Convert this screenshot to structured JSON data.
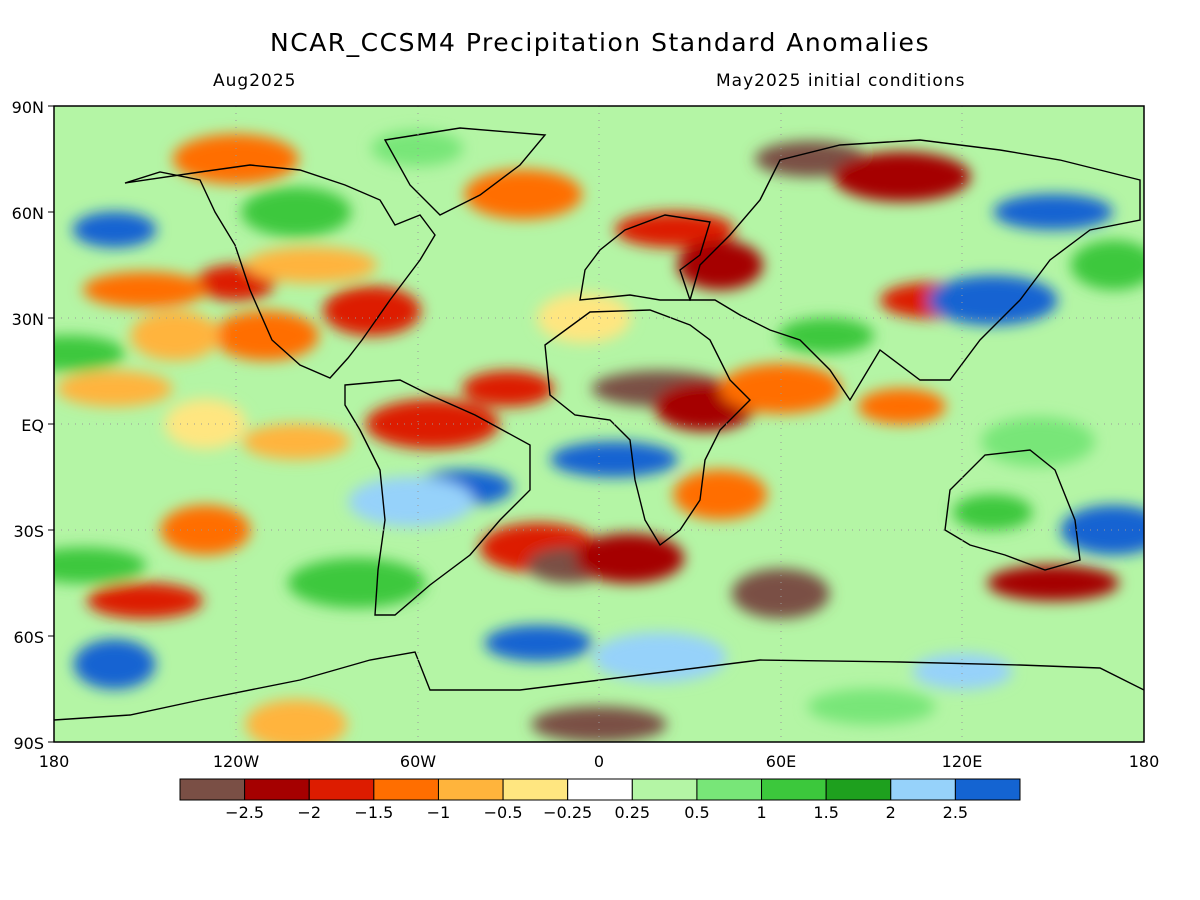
{
  "title": "NCAR_CCSM4 Precipitation Standard Anomalies",
  "valid_month": "Aug2025",
  "init_label": "May2025 initial conditions",
  "lat_labels": [
    "90N",
    "60N",
    "30N",
    "EQ",
    "30S",
    "60S",
    "90S"
  ],
  "lon_labels": [
    "180",
    "120W",
    "60W",
    "0",
    "60E",
    "120E",
    "180"
  ],
  "colorbar": {
    "ticks": [
      "−2.5",
      "−2",
      "−1.5",
      "−1",
      "−0.5",
      "−0.25",
      "0.25",
      "0.5",
      "1",
      "1.5",
      "2",
      "2.5"
    ],
    "colors": [
      "#7a4f45",
      "#a50000",
      "#dd1c00",
      "#ff6e00",
      "#ffb43c",
      "#ffe680",
      "#ffffff",
      "#b4f5a5",
      "#78e678",
      "#3cc83c",
      "#1ea01e",
      "#96d2fa",
      "#1464d2"
    ]
  },
  "patches": [
    {
      "lon": -120,
      "lat": 40,
      "c": 2
    },
    {
      "lon": -110,
      "lat": 25,
      "c": 3
    },
    {
      "lon": -95,
      "lat": 45,
      "c": 4
    },
    {
      "lon": -75,
      "lat": 32,
      "c": 2
    },
    {
      "lon": -150,
      "lat": 38,
      "c": 3
    },
    {
      "lon": -140,
      "lat": 25,
      "c": 4
    },
    {
      "lon": -160,
      "lat": 10,
      "c": 4
    },
    {
      "lon": -130,
      "lat": 0,
      "c": 5
    },
    {
      "lon": -100,
      "lat": -5,
      "c": 4
    },
    {
      "lon": -55,
      "lat": 0,
      "c": 2
    },
    {
      "lon": -45,
      "lat": -18,
      "c": 12
    },
    {
      "lon": -62,
      "lat": -22,
      "c": 11
    },
    {
      "lon": -30,
      "lat": 10,
      "c": 2
    },
    {
      "lon": -20,
      "lat": -35,
      "c": 2
    },
    {
      "lon": -10,
      "lat": -40,
      "c": 0
    },
    {
      "lon": 10,
      "lat": -38,
      "c": 1
    },
    {
      "lon": 20,
      "lat": 10,
      "c": 0
    },
    {
      "lon": 35,
      "lat": 5,
      "c": 1
    },
    {
      "lon": 5,
      "lat": -10,
      "c": 12
    },
    {
      "lon": 40,
      "lat": -20,
      "c": 3
    },
    {
      "lon": 25,
      "lat": 55,
      "c": 2
    },
    {
      "lon": 40,
      "lat": 45,
      "c": 1
    },
    {
      "lon": 70,
      "lat": 75,
      "c": 0
    },
    {
      "lon": 100,
      "lat": 70,
      "c": 1
    },
    {
      "lon": 110,
      "lat": 35,
      "c": 2
    },
    {
      "lon": 130,
      "lat": 35,
      "c": 12
    },
    {
      "lon": 75,
      "lat": 25,
      "c": 9
    },
    {
      "lon": 60,
      "lat": 10,
      "c": 3
    },
    {
      "lon": 100,
      "lat": 5,
      "c": 3
    },
    {
      "lon": 145,
      "lat": -5,
      "c": 8
    },
    {
      "lon": 130,
      "lat": -25,
      "c": 9
    },
    {
      "lon": 170,
      "lat": -30,
      "c": 12
    },
    {
      "lon": 150,
      "lat": -45,
      "c": 1
    },
    {
      "lon": 60,
      "lat": -48,
      "c": 0
    },
    {
      "lon": -170,
      "lat": -40,
      "c": 9
    },
    {
      "lon": -130,
      "lat": -30,
      "c": 3
    },
    {
      "lon": -150,
      "lat": -50,
      "c": 2
    },
    {
      "lon": -160,
      "lat": -68,
      "c": 12
    },
    {
      "lon": -20,
      "lat": -62,
      "c": 12
    },
    {
      "lon": 20,
      "lat": -66,
      "c": 11
    },
    {
      "lon": 120,
      "lat": -70,
      "c": 11
    },
    {
      "lon": -120,
      "lat": 75,
      "c": 3
    },
    {
      "lon": -60,
      "lat": 78,
      "c": 8
    },
    {
      "lon": -25,
      "lat": 65,
      "c": 3
    },
    {
      "lon": -160,
      "lat": 55,
      "c": 12
    },
    {
      "lon": -100,
      "lat": 60,
      "c": 9
    },
    {
      "lon": 0,
      "lat": -85,
      "c": 0
    },
    {
      "lon": -100,
      "lat": -85,
      "c": 4
    },
    {
      "lon": 90,
      "lat": -80,
      "c": 8
    },
    {
      "lon": -5,
      "lat": 30,
      "c": 5
    },
    {
      "lon": 150,
      "lat": 60,
      "c": 12
    },
    {
      "lon": 170,
      "lat": 45,
      "c": 9
    },
    {
      "lon": -175,
      "lat": 20,
      "c": 9
    },
    {
      "lon": -80,
      "lat": -45,
      "c": 9
    }
  ]
}
